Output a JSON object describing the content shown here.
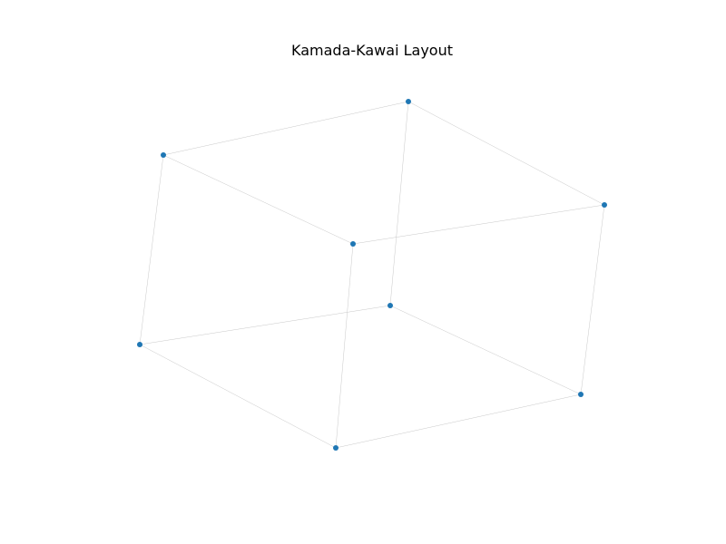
{
  "figure": {
    "title": "Kamada-Kawai Layout"
  },
  "graph": {
    "type": "cube-graph",
    "node_color": "#1f77b4",
    "edge_color": "#c8c8c8",
    "node_count": 8,
    "edges": [
      [
        0,
        1
      ],
      [
        0,
        2
      ],
      [
        0,
        3
      ],
      [
        1,
        4
      ],
      [
        1,
        5
      ],
      [
        2,
        4
      ],
      [
        2,
        6
      ],
      [
        3,
        5
      ],
      [
        3,
        6
      ],
      [
        4,
        7
      ],
      [
        5,
        7
      ],
      [
        6,
        7
      ]
    ]
  }
}
